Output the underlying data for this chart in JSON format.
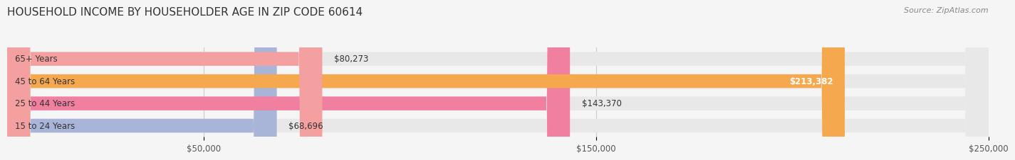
{
  "title": "HOUSEHOLD INCOME BY HOUSEHOLDER AGE IN ZIP CODE 60614",
  "source": "Source: ZipAtlas.com",
  "categories": [
    "15 to 24 Years",
    "25 to 44 Years",
    "45 to 64 Years",
    "65+ Years"
  ],
  "values": [
    68696,
    143370,
    213382,
    80273
  ],
  "bar_colors": [
    "#a8b4d8",
    "#f07fa0",
    "#f5a84e",
    "#f5a0a0"
  ],
  "bar_edge_colors": [
    "#8898c8",
    "#e05580",
    "#e08020",
    "#e07070"
  ],
  "label_colors": [
    "#333333",
    "#333333",
    "#ffffff",
    "#333333"
  ],
  "xlim": [
    0,
    250000
  ],
  "xticks": [
    50000,
    150000,
    250000
  ],
  "xtick_labels": [
    "$50,000",
    "$150,000",
    "$250,000"
  ],
  "background_color": "#f5f5f5",
  "bar_bg_color": "#e8e8e8",
  "title_fontsize": 11,
  "source_fontsize": 8,
  "bar_height": 0.62,
  "figsize": [
    14.06,
    2.33
  ]
}
